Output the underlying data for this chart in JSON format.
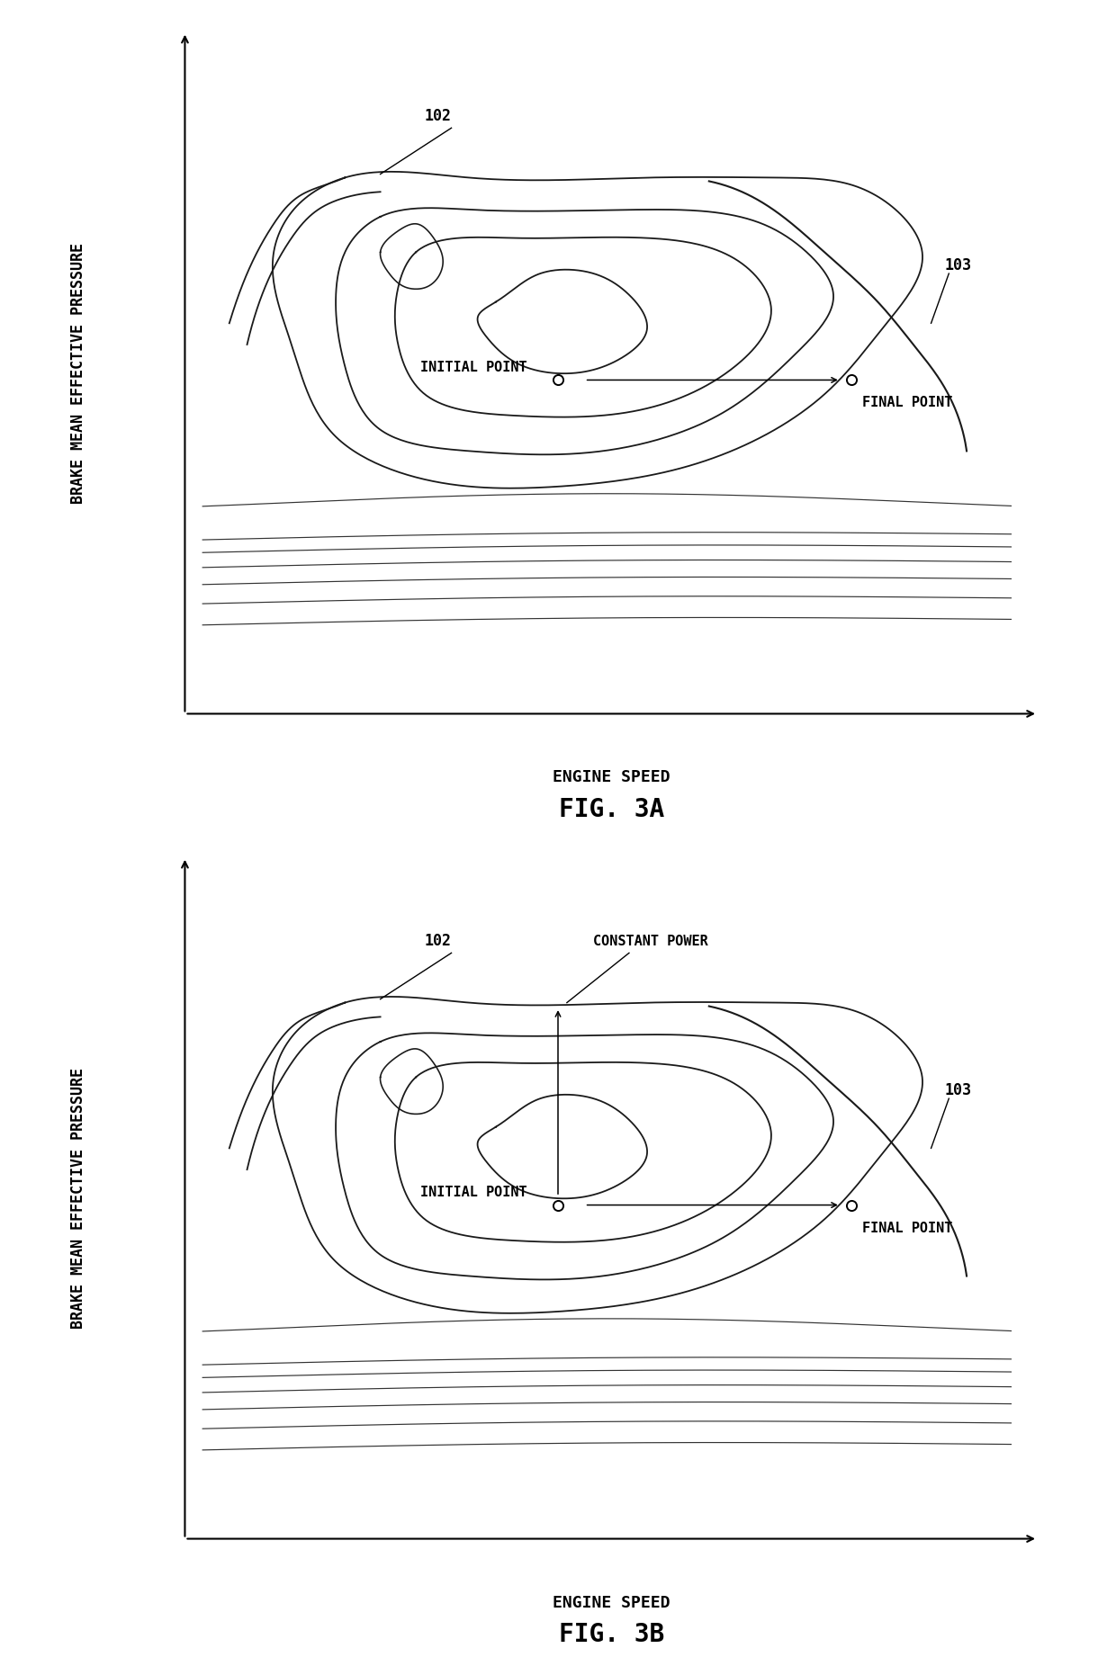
{
  "fig_title_a": "FIG. 3A",
  "fig_title_b": "FIG. 3B",
  "xlabel": "ENGINE SPEED",
  "ylabel": "BRAKE MEAN EFFECTIVE PRESSURE",
  "label_102": "102",
  "label_103": "103",
  "initial_point_label": "INITIAL POINT",
  "final_point_label": "FINAL POINT",
  "constant_power_label": "CONSTANT POWER",
  "bg_color": "#ffffff",
  "line_color": "#1a1a1a",
  "title_fontsize": 20,
  "axis_label_fontsize": 12,
  "annotation_fontsize": 11
}
